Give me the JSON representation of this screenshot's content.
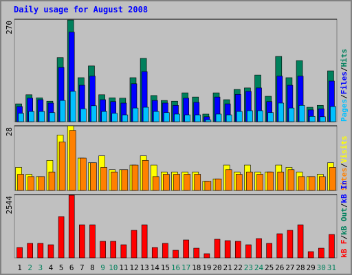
{
  "chart_data": [
    {
      "type": "bar",
      "title": "Daily usage for August 2008",
      "legend_separator": "/",
      "ylim": [
        0,
        270
      ],
      "yticks": [
        270
      ],
      "series": [
        {
          "name": "Hits",
          "color": "#00805c",
          "values": [
            47,
            71,
            63,
            54,
            169,
            268,
            116,
            147,
            71,
            63,
            62,
            116,
            167,
            69,
            56,
            54,
            76,
            65,
            20,
            76,
            58,
            85,
            89,
            123,
            67,
            172,
            116,
            161,
            38,
            43,
            134
          ]
        },
        {
          "name": "Files",
          "color": "#0000ff",
          "values": [
            40,
            62,
            58,
            49,
            143,
            236,
            96,
            120,
            58,
            53,
            49,
            100,
            132,
            56,
            49,
            43,
            62,
            51,
            13,
            65,
            47,
            72,
            80,
            89,
            53,
            120,
            96,
            120,
            31,
            34,
            107
          ]
        },
        {
          "name": "Pages",
          "color": "#00c0ff",
          "values": [
            22,
            27,
            27,
            24,
            56,
            80,
            34,
            42,
            27,
            22,
            18,
            36,
            38,
            27,
            24,
            20,
            18,
            18,
            5,
            20,
            18,
            27,
            29,
            29,
            24,
            49,
            36,
            43,
            14,
            13,
            40
          ]
        }
      ]
    },
    {
      "type": "bar",
      "ylim": [
        0,
        28
      ],
      "yticks": [
        28
      ],
      "series": [
        {
          "name": "Visits",
          "color": "#ffff00",
          "values": [
            10,
            7,
            6,
            13,
            24,
            28,
            14,
            12,
            15,
            9,
            9,
            11,
            15,
            11,
            8,
            8,
            8,
            8,
            4,
            5,
            11,
            8,
            11,
            8,
            8,
            11,
            10,
            8,
            6,
            7,
            12
          ]
        },
        {
          "name": "Sites",
          "color": "#ff8000",
          "values": [
            7,
            6,
            6,
            8,
            21,
            26,
            14,
            12,
            10,
            8,
            9,
            11,
            13,
            6,
            7,
            7,
            7,
            7,
            4,
            5,
            9,
            7,
            8,
            7,
            8,
            8,
            9,
            6,
            6,
            6,
            10
          ]
        }
      ]
    },
    {
      "type": "bar",
      "ylim": [
        0,
        2544
      ],
      "yticks": [
        2544
      ],
      "categories": [
        "1",
        "2",
        "3",
        "4",
        "5",
        "6",
        "7",
        "8",
        "9",
        "10",
        "11",
        "12",
        "13",
        "14",
        "15",
        "16",
        "17",
        "18",
        "19",
        "20",
        "21",
        "22",
        "23",
        "24",
        "25",
        "26",
        "27",
        "28",
        "29",
        "30",
        "31"
      ],
      "category_colors": [
        "#000000",
        "#00805c",
        "#00805c",
        "#000000",
        "#000000",
        "#000000",
        "#000000",
        "#000000",
        "#00805c",
        "#00805c",
        "#000000",
        "#000000",
        "#000000",
        "#000000",
        "#000000",
        "#00805c",
        "#00805c",
        "#000000",
        "#000000",
        "#000000",
        "#000000",
        "#000000",
        "#00805c",
        "#00805c",
        "#000000",
        "#000000",
        "#000000",
        "#000000",
        "#000000",
        "#00805c",
        "#00805c"
      ],
      "series": [
        {
          "name": "kB F",
          "color": "#ff0000",
          "values": [
            415,
            581,
            581,
            525,
            1659,
            2516,
            1327,
            1327,
            664,
            664,
            525,
            1106,
            1327,
            415,
            581,
            304,
            719,
            387,
            166,
            747,
            691,
            664,
            525,
            774,
            581,
            968,
            1106,
            1327,
            249,
            387,
            940
          ]
        }
      ],
      "legend_only": [
        {
          "name": "kB Out",
          "color": "#00805c"
        },
        {
          "name": "kB In",
          "color": "#0000ff"
        }
      ]
    }
  ]
}
